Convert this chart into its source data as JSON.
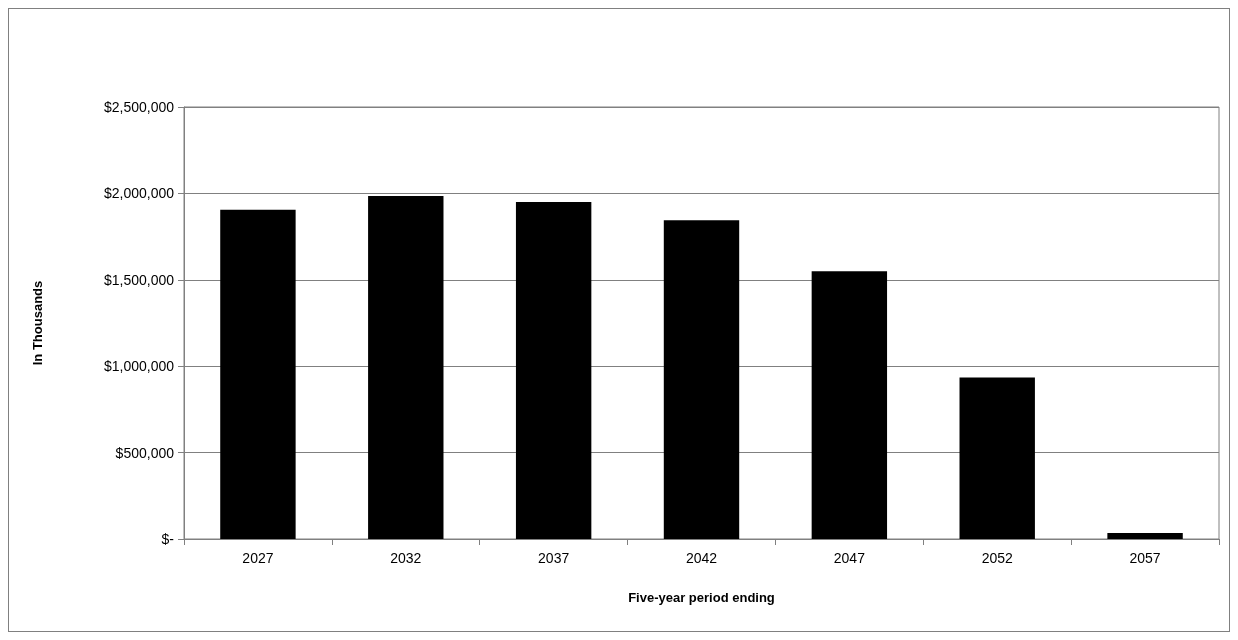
{
  "chart_data": {
    "type": "bar",
    "xlabel": "Five-year period ending",
    "ylabel": "In Thousands",
    "categories": [
      "2027",
      "2032",
      "2037",
      "2042",
      "2047",
      "2052",
      "2057"
    ],
    "values": [
      1905000,
      1985000,
      1950000,
      1845000,
      1550000,
      935000,
      35000
    ],
    "color": "#000000",
    "ylim": [
      0,
      2500000
    ],
    "yticks": [
      {
        "value": 0,
        "label": "$-"
      },
      {
        "value": 500000,
        "label": "$500,000"
      },
      {
        "value": 1000000,
        "label": "$1,000,000"
      },
      {
        "value": 1500000,
        "label": "$1,500,000"
      },
      {
        "value": 2000000,
        "label": "$2,000,000"
      },
      {
        "value": 2500000,
        "label": "$2,500,000"
      }
    ],
    "grid": "y"
  }
}
